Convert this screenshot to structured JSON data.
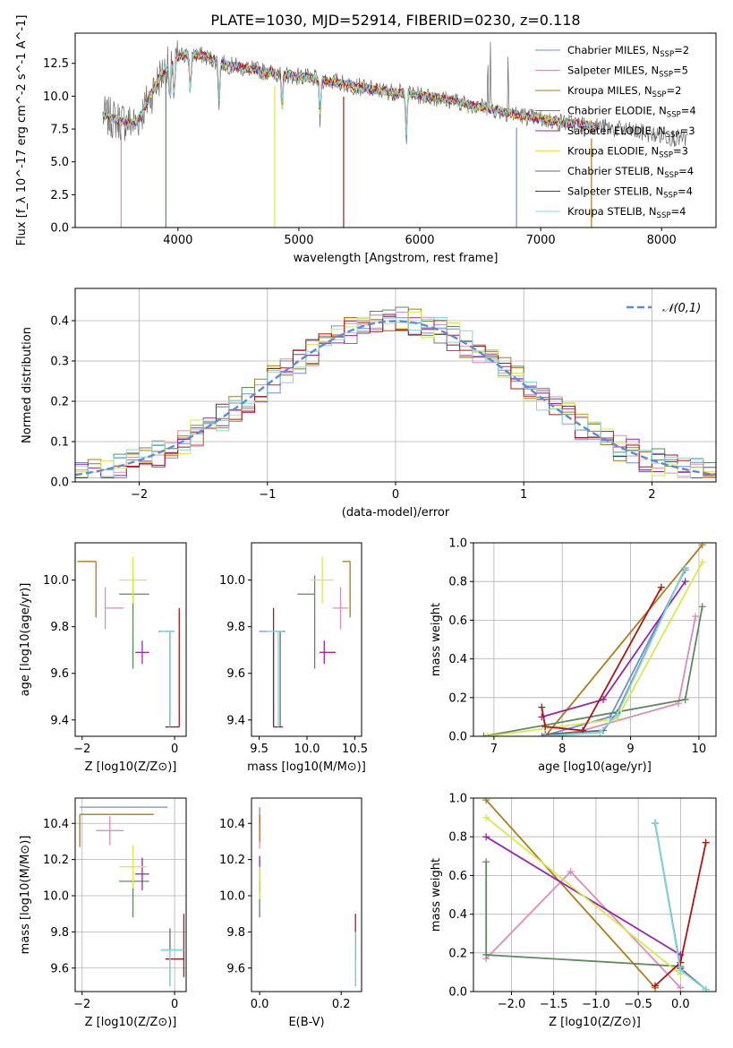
{
  "title": "PLATE=1030, MJD=52914, FIBERID=0230, z=0.118",
  "legend": [
    {
      "name": "Chabrier MILES, N_SSP=2",
      "color": "#6b8fdc"
    },
    {
      "name": "Salpeter MILES, N_SSP=5",
      "color": "#e08bb8"
    },
    {
      "name": "Kroupa MILES, N_SSP=2",
      "color": "#b07a18"
    },
    {
      "name": "Chabrier ELODIE, N_SSP=4",
      "color": "#5e8a5e"
    },
    {
      "name": "Salpeter ELODIE, N_SSP=3",
      "color": "#9b25a8"
    },
    {
      "name": "Kroupa ELODIE, N_SSP=3",
      "color": "#d7ea4a"
    },
    {
      "name": "Chabrier STELIB, N_SSP=4",
      "color": "#6a6a6a"
    },
    {
      "name": "Salpeter STELIB, N_SSP=4",
      "color": "#b01515"
    },
    {
      "name": "Kroupa STELIB, N_SSP=4",
      "color": "#7fd7df"
    }
  ],
  "chart_data": [
    {
      "type": "line",
      "id": "spectrum",
      "xlabel": "wavelength [Angstrom, rest frame]",
      "ylabel": "Flux [f_λ 10^-17 erg cm^-2 s^-1 A^-1]",
      "xlim": [
        3150,
        8450
      ],
      "ylim": [
        0,
        14.8
      ],
      "xticks": [
        4000,
        5000,
        6000,
        7000,
        8000
      ],
      "yticks": [
        0.0,
        2.5,
        5.0,
        7.5,
        10.0,
        12.5
      ],
      "ytick_labels": [
        "0.0",
        "2.5",
        "5.0",
        "7.5",
        "10.0",
        "12.5"
      ],
      "continuum": [
        [
          3380,
          8.5
        ],
        [
          3500,
          8.2
        ],
        [
          3650,
          7.9
        ],
        [
          3750,
          9.6
        ],
        [
          3850,
          11.5
        ],
        [
          3950,
          12.7
        ],
        [
          4050,
          13.2
        ],
        [
          4200,
          13.1
        ],
        [
          4400,
          12.4
        ],
        [
          4700,
          11.9
        ],
        [
          5000,
          11.5
        ],
        [
          5300,
          11.1
        ],
        [
          5600,
          10.5
        ],
        [
          5900,
          10.2
        ],
        [
          6200,
          9.8
        ],
        [
          6500,
          9.2
        ],
        [
          6800,
          8.6
        ],
        [
          7100,
          8.1
        ],
        [
          7400,
          7.8
        ],
        [
          7700,
          7.4
        ],
        [
          8000,
          7.0
        ],
        [
          8200,
          6.7
        ]
      ],
      "data_range": [
        3380,
        8220
      ],
      "model_range": [
        3380,
        7450
      ],
      "absorption_lines": [
        3934,
        3969,
        4102,
        4340,
        4861,
        5175,
        5890
      ],
      "emission_lines": [
        6563,
        6584,
        6731
      ]
    },
    {
      "type": "histogram",
      "id": "residuals",
      "xlabel": "(data-model)/error",
      "ylabel": "Normed distribution",
      "xlim": [
        -2.5,
        2.5
      ],
      "ylim": [
        0,
        0.48
      ],
      "xticks": [
        -2,
        -1,
        0,
        1,
        2
      ],
      "yticks": [
        0.0,
        0.1,
        0.2,
        0.3,
        0.4
      ],
      "bin_width": 0.1,
      "gaussian_label": "𝒩(0,1)",
      "gaussian_color": "#5b8bd9"
    },
    {
      "type": "scatter",
      "id": "age_vs_Z",
      "xlabel": "Z [log10(Z/Z⊙)]",
      "ylabel": "age  [log10(age/yr)]",
      "xlim": [
        -2.15,
        0.25
      ],
      "ylim": [
        9.33,
        10.16
      ],
      "xticks": [
        -2,
        0
      ],
      "yticks": [
        9.4,
        9.6,
        9.8,
        10.0
      ],
      "points": [
        {
          "s": 0,
          "x": -0.1,
          "y": 9.78,
          "xerr": [
            0.25,
            0.1
          ],
          "yerr": [
            0.41,
            0.0
          ]
        },
        {
          "s": 1,
          "x": -1.5,
          "y": 9.88,
          "xerr": [
            0.0,
            0.4
          ],
          "yerr": [
            0.09,
            0.09
          ]
        },
        {
          "s": 2,
          "x": -1.7,
          "y": 10.08,
          "xerr": [
            0.4,
            0.0
          ],
          "yerr": [
            0.24,
            0.0
          ]
        },
        {
          "s": 3,
          "x": -0.9,
          "y": 9.94,
          "xerr": [
            0.3,
            0.35
          ],
          "yerr": [
            0.32,
            0.08
          ]
        },
        {
          "s": 4,
          "x": -0.7,
          "y": 9.69,
          "xerr": [
            0.15,
            0.15
          ],
          "yerr": [
            0.05,
            0.05
          ]
        },
        {
          "s": 5,
          "x": -0.9,
          "y": 10.0,
          "xerr": [
            0.3,
            0.3
          ],
          "yerr": [
            0.1,
            0.1
          ]
        },
        {
          "s": 6,
          "x": -0.1,
          "y": 9.78,
          "xerr": [
            0.1,
            0.1
          ],
          "yerr": [
            0.41,
            0.0
          ]
        },
        {
          "s": 7,
          "x": 0.1,
          "y": 9.37,
          "xerr": [
            0.3,
            0.0
          ],
          "yerr": [
            0.0,
            0.51
          ]
        },
        {
          "s": 8,
          "x": -0.1,
          "y": 9.78,
          "xerr": [
            0.2,
            0.1
          ],
          "yerr": [
            0.41,
            0.0
          ]
        }
      ]
    },
    {
      "type": "scatter",
      "id": "age_vs_mass",
      "xlabel": "mass [log10(M/M⊙)]",
      "ylabel": "",
      "xlim": [
        9.42,
        10.57
      ],
      "ylim": [
        9.33,
        10.16
      ],
      "xticks": [
        9.5,
        10.0,
        10.5
      ],
      "yticks": [
        9.4,
        9.6,
        9.8,
        10.0
      ],
      "points": [
        {
          "s": 0,
          "x": 9.65,
          "y": 9.78,
          "xerr": [
            0.15,
            0.05
          ],
          "yerr": [
            0.41,
            0.0
          ]
        },
        {
          "s": 1,
          "x": 10.35,
          "y": 9.88,
          "xerr": [
            0.08,
            0.08
          ],
          "yerr": [
            0.09,
            0.09
          ]
        },
        {
          "s": 2,
          "x": 10.45,
          "y": 10.08,
          "xerr": [
            0.08,
            0.0
          ],
          "yerr": [
            0.24,
            0.0
          ]
        },
        {
          "s": 3,
          "x": 10.08,
          "y": 9.94,
          "xerr": [
            0.18,
            0.0
          ],
          "yerr": [
            0.32,
            0.08
          ]
        },
        {
          "s": 4,
          "x": 10.18,
          "y": 9.69,
          "xerr": [
            0.05,
            0.12
          ],
          "yerr": [
            0.05,
            0.05
          ]
        },
        {
          "s": 5,
          "x": 10.16,
          "y": 10.0,
          "xerr": [
            0.12,
            0.12
          ],
          "yerr": [
            0.1,
            0.1
          ]
        },
        {
          "s": 6,
          "x": 9.72,
          "y": 9.78,
          "xerr": [
            0.05,
            0.05
          ],
          "yerr": [
            0.41,
            0.0
          ]
        },
        {
          "s": 7,
          "x": 9.65,
          "y": 9.37,
          "xerr": [
            0.0,
            0.1
          ],
          "yerr": [
            0.0,
            0.51
          ]
        },
        {
          "s": 8,
          "x": 9.7,
          "y": 9.78,
          "xerr": [
            0.12,
            0.05
          ],
          "yerr": [
            0.41,
            0.0
          ]
        }
      ]
    },
    {
      "type": "line",
      "id": "weight_vs_age",
      "xlabel": "age  [log10(age/yr)]",
      "ylabel": "mass weight",
      "xlim": [
        6.7,
        10.25
      ],
      "ylim": [
        0,
        1
      ],
      "xticks": [
        7,
        8,
        9,
        10
      ],
      "yticks": [
        0.0,
        0.2,
        0.4,
        0.6,
        0.8,
        1.0
      ],
      "series": [
        {
          "s": 0,
          "points": [
            [
              7.7,
              0.0
            ],
            [
              8.7,
              0.1
            ],
            [
              9.8,
              0.86
            ]
          ]
        },
        {
          "s": 1,
          "points": [
            [
              7.8,
              0.0
            ],
            [
              8.3,
              0.03
            ],
            [
              9.7,
              0.17
            ],
            [
              9.95,
              0.62
            ]
          ]
        },
        {
          "s": 2,
          "points": [
            [
              7.75,
              0.0
            ],
            [
              10.05,
              0.99
            ]
          ]
        },
        {
          "s": 3,
          "points": [
            [
              6.85,
              0.0
            ],
            [
              9.8,
              0.19
            ],
            [
              10.05,
              0.67
            ]
          ]
        },
        {
          "s": 4,
          "points": [
            [
              7.7,
              0.1
            ],
            [
              8.6,
              0.19
            ],
            [
              9.8,
              0.8
            ]
          ]
        },
        {
          "s": 5,
          "points": [
            [
              6.9,
              0.0
            ],
            [
              8.8,
              0.09
            ],
            [
              10.05,
              0.9
            ]
          ]
        },
        {
          "s": 6,
          "points": [
            [
              7.75,
              0.01
            ],
            [
              8.6,
              0.03
            ],
            [
              8.8,
              0.12
            ],
            [
              9.8,
              0.87
            ]
          ]
        },
        {
          "s": 7,
          "points": [
            [
              7.7,
              0.15
            ],
            [
              7.75,
              0.05
            ],
            [
              8.3,
              0.03
            ],
            [
              9.45,
              0.77
            ]
          ]
        },
        {
          "s": 8,
          "points": [
            [
              7.75,
              0.0
            ],
            [
              8.55,
              0.02
            ],
            [
              8.8,
              0.11
            ],
            [
              9.8,
              0.87
            ]
          ]
        }
      ]
    },
    {
      "type": "scatter",
      "id": "mass_vs_Z",
      "xlabel": "Z [log10(Z/Z⊙)]",
      "ylabel": "mass [log10(M/M⊙)]",
      "xlim": [
        -2.15,
        0.25
      ],
      "ylim": [
        9.47,
        10.54
      ],
      "xticks": [
        -2,
        0
      ],
      "yticks": [
        9.6,
        9.8,
        10.0,
        10.2,
        10.4
      ],
      "points": [
        {
          "s": 0,
          "x": -2.05,
          "y": 10.49,
          "xerr": [
            0.0,
            1.9
          ],
          "yerr": [
            0.0,
            0.0
          ]
        },
        {
          "s": 1,
          "x": -1.4,
          "y": 10.36,
          "xerr": [
            0.3,
            0.3
          ],
          "yerr": [
            0.08,
            0.08
          ]
        },
        {
          "s": 2,
          "x": -2.05,
          "y": 10.45,
          "xerr": [
            0.0,
            1.6
          ],
          "yerr": [
            0.18,
            0.0
          ]
        },
        {
          "s": 3,
          "x": -0.9,
          "y": 10.08,
          "xerr": [
            0.3,
            0.35
          ],
          "yerr": [
            0.2,
            0.0
          ]
        },
        {
          "s": 4,
          "x": -0.7,
          "y": 10.12,
          "xerr": [
            0.15,
            0.15
          ],
          "yerr": [
            0.09,
            0.09
          ]
        },
        {
          "s": 5,
          "x": -0.9,
          "y": 10.16,
          "xerr": [
            0.3,
            0.3
          ],
          "yerr": [
            0.12,
            0.12
          ]
        },
        {
          "s": 6,
          "x": -0.1,
          "y": 9.7,
          "xerr": [
            0.2,
            0.3
          ],
          "yerr": [
            0.2,
            0.12
          ]
        },
        {
          "s": 7,
          "x": 0.2,
          "y": 9.65,
          "xerr": [
            0.4,
            0.0
          ],
          "yerr": [
            0.1,
            0.25
          ]
        },
        {
          "s": 8,
          "x": -0.1,
          "y": 9.7,
          "xerr": [
            0.2,
            0.3
          ],
          "yerr": [
            0.2,
            0.0
          ]
        }
      ]
    },
    {
      "type": "scatter",
      "id": "mass_vs_ebv",
      "xlabel": "E(B-V)",
      "ylabel": "",
      "xlim": [
        -0.02,
        0.25
      ],
      "ylim": [
        9.47,
        10.54
      ],
      "xticks": [
        0.0,
        0.2
      ],
      "yticks": [
        9.6,
        9.8,
        10.0,
        10.2,
        10.4
      ],
      "points": [
        {
          "s": 0,
          "x": 0.0,
          "y": 10.49,
          "xerr": [
            0.0,
            0.0
          ],
          "yerr": [
            0.1,
            0.0
          ]
        },
        {
          "s": 1,
          "x": 0.0,
          "y": 10.36,
          "xerr": [
            0.0,
            0.0
          ],
          "yerr": [
            0.1,
            0.1
          ]
        },
        {
          "s": 2,
          "x": 0.0,
          "y": 10.45,
          "xerr": [
            0.0,
            0.0
          ],
          "yerr": [
            0.15,
            0.0
          ]
        },
        {
          "s": 3,
          "x": 0.0,
          "y": 10.08,
          "xerr": [
            0.0,
            0.0
          ],
          "yerr": [
            0.2,
            0.0
          ]
        },
        {
          "s": 4,
          "x": 0.0,
          "y": 10.12,
          "xerr": [
            0.0,
            0.0
          ],
          "yerr": [
            0.1,
            0.1
          ]
        },
        {
          "s": 5,
          "x": 0.0,
          "y": 10.16,
          "xerr": [
            0.0,
            0.0
          ],
          "yerr": [
            0.18,
            0.0
          ]
        },
        {
          "s": 6,
          "x": 0.235,
          "y": 9.7,
          "xerr": [
            0.0,
            0.0
          ],
          "yerr": [
            0.2,
            0.1
          ]
        },
        {
          "s": 7,
          "x": 0.235,
          "y": 9.65,
          "xerr": [
            0.0,
            0.0
          ],
          "yerr": [
            0.0,
            0.25
          ]
        },
        {
          "s": 8,
          "x": 0.235,
          "y": 9.7,
          "xerr": [
            0.0,
            0.0
          ],
          "yerr": [
            0.2,
            0.1
          ]
        }
      ]
    },
    {
      "type": "line",
      "id": "weight_vs_Z",
      "xlabel": "Z [log10(Z/Z⊙)]",
      "ylabel": "mass weight",
      "xlim": [
        -2.45,
        0.42
      ],
      "ylim": [
        0,
        1
      ],
      "xticks": [
        -2.0,
        -1.5,
        -1.0,
        -0.5,
        0.0
      ],
      "xtick_labels": [
        "−2.0",
        "−1.5",
        "−1.0",
        "−0.5",
        "0.0"
      ],
      "yticks": [
        0.0,
        0.2,
        0.4,
        0.6,
        0.8,
        1.0
      ],
      "series": [
        {
          "s": 0,
          "points": [
            [
              -0.3,
              0.87
            ],
            [
              0.0,
              0.12
            ],
            [
              0.3,
              0.01
            ]
          ]
        },
        {
          "s": 1,
          "points": [
            [
              -2.3,
              0.17
            ],
            [
              -1.3,
              0.62
            ],
            [
              0.0,
              0.02
            ]
          ]
        },
        {
          "s": 2,
          "points": [
            [
              -2.3,
              0.99
            ],
            [
              -0.3,
              0.02
            ]
          ]
        },
        {
          "s": 3,
          "points": [
            [
              -2.3,
              0.67
            ],
            [
              -2.3,
              0.19
            ],
            [
              0.0,
              0.13
            ]
          ]
        },
        {
          "s": 4,
          "points": [
            [
              -2.3,
              0.8
            ],
            [
              0.0,
              0.19
            ]
          ]
        },
        {
          "s": 5,
          "points": [
            [
              -2.3,
              0.9
            ],
            [
              0.0,
              0.09
            ]
          ]
        },
        {
          "s": 6,
          "points": [
            [
              -0.3,
              0.87
            ],
            [
              0.0,
              0.12
            ],
            [
              0.3,
              0.01
            ]
          ]
        },
        {
          "s": 7,
          "points": [
            [
              0.3,
              0.77
            ],
            [
              0.0,
              0.15
            ],
            [
              -0.3,
              0.03
            ]
          ]
        },
        {
          "s": 8,
          "points": [
            [
              -0.3,
              0.87
            ],
            [
              0.0,
              0.11
            ],
            [
              0.3,
              0.01
            ]
          ]
        }
      ]
    }
  ]
}
